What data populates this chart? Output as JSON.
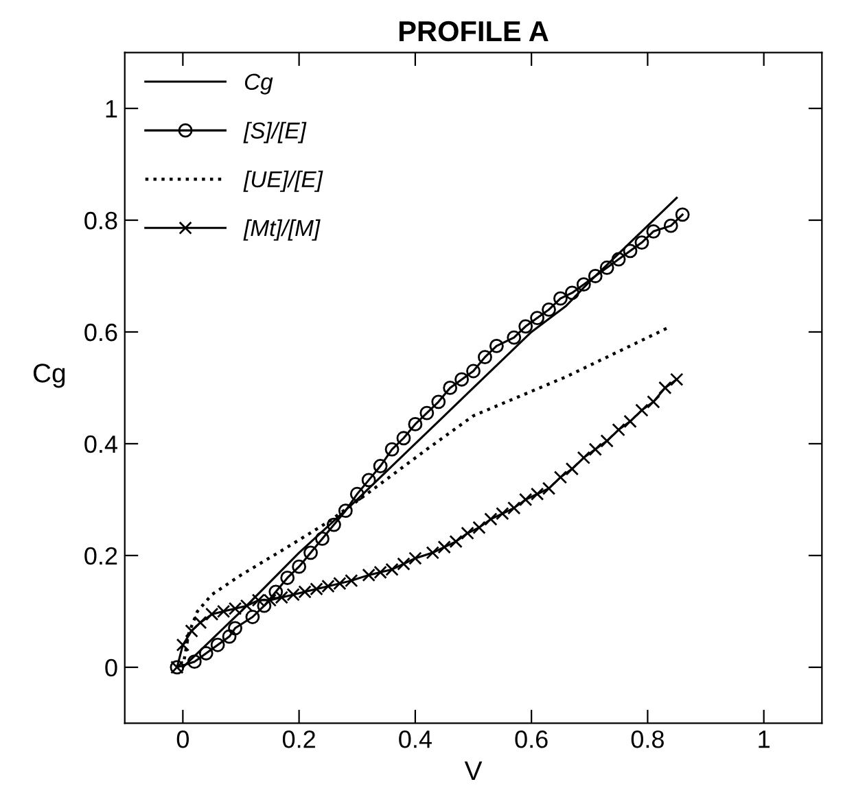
{
  "chart_data": {
    "type": "line",
    "title": "PROFILE A",
    "xlabel": "V",
    "ylabel": "Cg",
    "xlim": [
      -0.1,
      1.1
    ],
    "ylim": [
      -0.1,
      1.1
    ],
    "xticks": [
      0,
      0.2,
      0.4,
      0.6,
      0.8,
      1
    ],
    "yticks": [
      0,
      0.2,
      0.4,
      0.6,
      0.8,
      1
    ],
    "grid": false,
    "legend": "top left",
    "series": [
      {
        "name": "Cg",
        "color": "#000000",
        "marker": "none",
        "line_style": "solid",
        "x": [
          0,
          0.1,
          0.2,
          0.3,
          0.4,
          0.44,
          0.5,
          0.6,
          0.66,
          0.7,
          0.85
        ],
        "values": [
          0,
          0.1,
          0.205,
          0.3,
          0.4,
          0.44,
          0.5,
          0.6,
          0.647,
          0.69,
          0.84
        ]
      },
      {
        "name": "[S]/[E]",
        "color": "#000000",
        "marker": "circle",
        "line_style": "solid",
        "x": [
          -0.01,
          0.02,
          0.04,
          0.06,
          0.08,
          0.09,
          0.12,
          0.14,
          0.16,
          0.18,
          0.2,
          0.22,
          0.24,
          0.26,
          0.28,
          0.3,
          0.32,
          0.34,
          0.36,
          0.38,
          0.4,
          0.42,
          0.44,
          0.46,
          0.48,
          0.5,
          0.52,
          0.54,
          0.57,
          0.59,
          0.61,
          0.63,
          0.65,
          0.67,
          0.69,
          0.71,
          0.73,
          0.75,
          0.77,
          0.79,
          0.81,
          0.84,
          0.86
        ],
        "values": [
          0.0,
          0.01,
          0.025,
          0.04,
          0.055,
          0.07,
          0.09,
          0.11,
          0.135,
          0.16,
          0.18,
          0.205,
          0.23,
          0.255,
          0.28,
          0.31,
          0.335,
          0.36,
          0.39,
          0.41,
          0.435,
          0.455,
          0.475,
          0.5,
          0.515,
          0.53,
          0.555,
          0.575,
          0.59,
          0.61,
          0.625,
          0.64,
          0.66,
          0.67,
          0.685,
          0.7,
          0.715,
          0.73,
          0.745,
          0.76,
          0.78,
          0.79,
          0.81
        ]
      },
      {
        "name": "[UE]/[E]",
        "color": "#000000",
        "marker": "none",
        "line_style": "dotted",
        "x": [
          0,
          0.01,
          0.025,
          0.05,
          0.1,
          0.18,
          0.25,
          0.31,
          0.42,
          0.5,
          0.66,
          0.75,
          0.84
        ],
        "values": [
          0.0,
          0.06,
          0.1,
          0.13,
          0.165,
          0.215,
          0.26,
          0.305,
          0.39,
          0.45,
          0.52,
          0.565,
          0.61
        ]
      },
      {
        "name": "[Mt]/[M]",
        "color": "#000000",
        "marker": "cross",
        "line_style": "solid",
        "x": [
          -0.01,
          0.0,
          0.015,
          0.03,
          0.05,
          0.07,
          0.09,
          0.11,
          0.13,
          0.15,
          0.17,
          0.19,
          0.21,
          0.23,
          0.25,
          0.27,
          0.29,
          0.32,
          0.34,
          0.36,
          0.38,
          0.4,
          0.43,
          0.45,
          0.47,
          0.49,
          0.51,
          0.53,
          0.55,
          0.57,
          0.59,
          0.61,
          0.63,
          0.65,
          0.67,
          0.69,
          0.71,
          0.73,
          0.75,
          0.77,
          0.79,
          0.81,
          0.83,
          0.85
        ],
        "values": [
          0.0,
          0.04,
          0.065,
          0.08,
          0.095,
          0.1,
          0.105,
          0.11,
          0.12,
          0.12,
          0.125,
          0.13,
          0.135,
          0.14,
          0.145,
          0.15,
          0.155,
          0.165,
          0.17,
          0.175,
          0.185,
          0.195,
          0.205,
          0.215,
          0.225,
          0.24,
          0.25,
          0.265,
          0.275,
          0.285,
          0.3,
          0.31,
          0.32,
          0.34,
          0.355,
          0.375,
          0.39,
          0.405,
          0.425,
          0.44,
          0.46,
          0.475,
          0.5,
          0.515
        ]
      }
    ]
  }
}
